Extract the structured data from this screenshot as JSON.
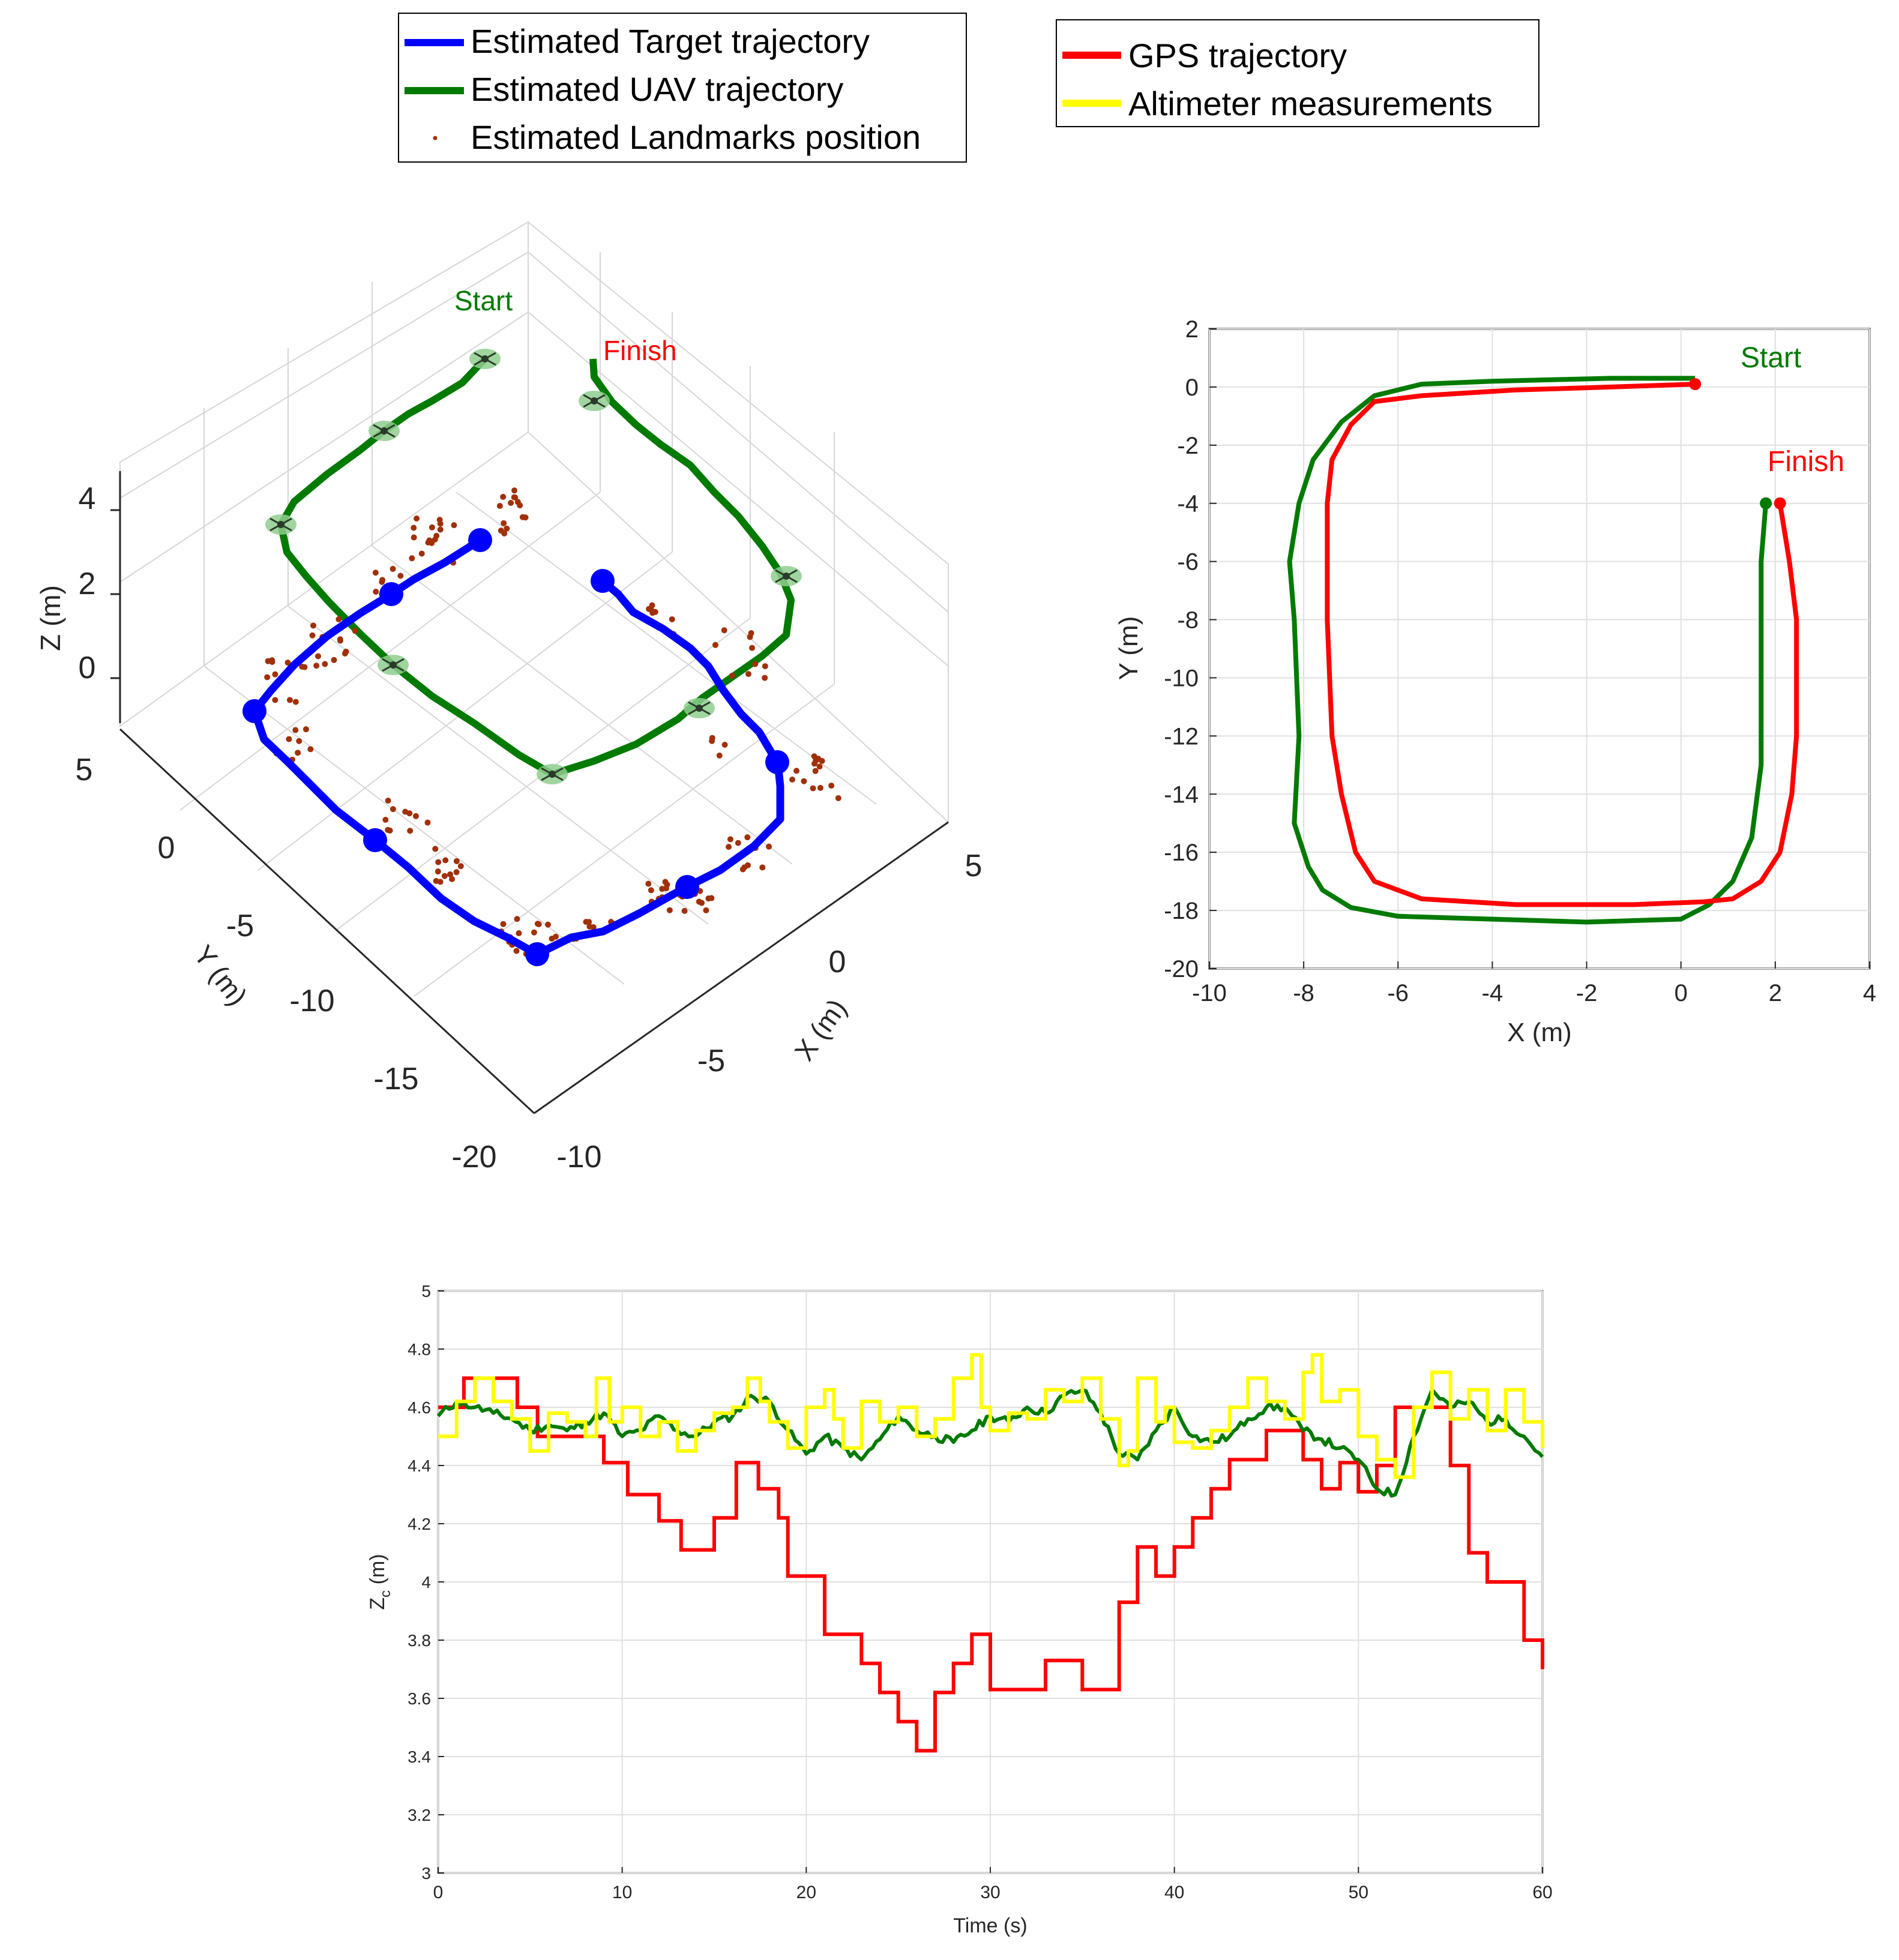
{
  "legend_left": {
    "items": [
      {
        "label": "Estimated Target trajectory",
        "color": "#0000ff",
        "style": "line"
      },
      {
        "label": "Estimated UAV trajectory",
        "color": "#007a00",
        "style": "line"
      },
      {
        "label": "Estimated Landmarks position",
        "color": "#a0300a",
        "style": "dot"
      }
    ]
  },
  "legend_right": {
    "items": [
      {
        "label": "GPS trajectory",
        "color": "#ff0000",
        "style": "line"
      },
      {
        "label": "Altimeter measurements",
        "color": "#ffff00",
        "style": "line"
      }
    ]
  },
  "colors": {
    "target": "#0000ff",
    "uav": "#007a00",
    "landmark": "#a0300a",
    "gps": "#ff0000",
    "altimeter": "#ffff00",
    "start_label": "#007a00",
    "finish_label": "#ff0000"
  },
  "chart_data": [
    {
      "type": "scatter",
      "id": "plot3d",
      "title": "",
      "annotations": {
        "start": "Start",
        "finish": "Finish"
      },
      "xlabel": "X (m)",
      "ylabel": "Y (m)",
      "zlabel": "Z (m)",
      "xticks": [
        "-10",
        "-5",
        "0",
        "5"
      ],
      "yticks": [
        "5",
        "0",
        "-5",
        "-10",
        "-15",
        "-20"
      ],
      "zticks": [
        "4",
        "2",
        "0"
      ],
      "xlim": [
        -10,
        5
      ],
      "ylim": [
        -20,
        5
      ],
      "zlim": [
        -1,
        4.5
      ],
      "target_trajectory": {
        "x": [
          0.3,
          -7.5,
          -7.5,
          2.1,
          1.8,
          0.3
        ],
        "y": [
          0,
          0,
          -17.8,
          -17.8,
          -4,
          0
        ],
        "z": [
          0,
          0,
          0,
          0,
          0,
          0
        ]
      },
      "uav_trajectory": {
        "x": [
          0.3,
          -8,
          -8,
          2.1,
          1.8
        ],
        "y": [
          0.2,
          0,
          -18.3,
          -18.3,
          -4
        ],
        "z": [
          4.5,
          4.5,
          4.5,
          4.5,
          4.5
        ]
      }
    },
    {
      "type": "line",
      "id": "plot2d",
      "title": "",
      "xlabel": "X (m)",
      "ylabel": "Y (m)",
      "xlim": [
        -10,
        4
      ],
      "ylim": [
        -20,
        2
      ],
      "xticks": [
        "-10",
        "-8",
        "-6",
        "-4",
        "-2",
        "0",
        "2",
        "4"
      ],
      "yticks": [
        "2",
        "0",
        "-2",
        "-4",
        "-6",
        "-8",
        "-10",
        "-12",
        "-14",
        "-16",
        "-18",
        "-20"
      ],
      "annotations": {
        "start": "Start",
        "finish": "Finish"
      },
      "series": [
        {
          "name": "Estimated UAV trajectory",
          "x": [
            0.3,
            -1.5,
            -4,
            -5.5,
            -6.5,
            -7.2,
            -7.8,
            -8.1,
            -8.3,
            -8.2,
            -8.1,
            -8.2,
            -7.9,
            -7.6,
            -7.0,
            -6.0,
            -4.0,
            -2.0,
            0.0,
            0.6,
            1.1,
            1.5,
            1.7,
            1.7,
            1.7,
            1.8
          ],
          "y": [
            0.3,
            0.3,
            0.2,
            0.1,
            -0.3,
            -1.2,
            -2.5,
            -4,
            -6,
            -8,
            -12,
            -15,
            -16.5,
            -17.3,
            -17.9,
            -18.2,
            -18.3,
            -18.4,
            -18.3,
            -17.8,
            -17,
            -15.5,
            -13,
            -10,
            -6,
            -4
          ]
        },
        {
          "name": "GPS trajectory",
          "x": [
            0.3,
            -1.5,
            -3.5,
            -5.5,
            -6.5,
            -7.0,
            -7.4,
            -7.5,
            -7.5,
            -7.4,
            -7.2,
            -6.9,
            -6.5,
            -5.5,
            -3.5,
            -1.0,
            0.5,
            1.1,
            1.7,
            2.1,
            2.35,
            2.45,
            2.45,
            2.3,
            2.1
          ],
          "y": [
            0.1,
            0,
            -0.1,
            -0.3,
            -0.5,
            -1.3,
            -2.5,
            -4,
            -8,
            -12,
            -14,
            -16,
            -17,
            -17.6,
            -17.8,
            -17.8,
            -17.7,
            -17.6,
            -17,
            -16,
            -14,
            -12,
            -8,
            -6,
            -4
          ]
        }
      ]
    },
    {
      "type": "line",
      "id": "plotz",
      "title": "",
      "xlabel": "Time (s)",
      "ylabel": "Z (m)",
      "ylabel_main": "Z",
      "ylabel_sub": "c",
      "ylabel_unit": " (m)",
      "xlim": [
        0,
        60
      ],
      "ylim": [
        3,
        5
      ],
      "xticks": [
        "0",
        "10",
        "20",
        "30",
        "40",
        "50",
        "60"
      ],
      "yticks": [
        "5",
        "4.8",
        "4.6",
        "4.4",
        "4.2",
        "4",
        "3.8",
        "3.6",
        "3.4",
        "3.2",
        "3"
      ],
      "series": [
        {
          "name": "GPS trajectory",
          "step": true,
          "t": [
            0,
            1.4,
            4.3,
            5.4,
            9,
            10.3,
            12,
            13.2,
            15,
            16.2,
            17.4,
            18.5,
            19,
            21,
            23,
            24,
            25,
            26,
            27,
            28,
            29,
            30,
            33,
            35,
            37,
            38,
            39,
            40,
            41,
            42,
            43,
            45,
            47,
            48,
            49,
            50,
            51,
            52,
            55,
            56,
            57,
            58,
            59,
            60
          ],
          "values": [
            4.6,
            4.7,
            4.6,
            4.5,
            4.41,
            4.3,
            4.21,
            4.11,
            4.22,
            4.41,
            4.32,
            4.22,
            4.02,
            3.82,
            3.72,
            3.62,
            3.52,
            3.42,
            3.62,
            3.72,
            3.82,
            3.63,
            3.73,
            3.63,
            3.93,
            4.12,
            4.02,
            4.12,
            4.22,
            4.32,
            4.42,
            4.52,
            4.42,
            4.32,
            4.41,
            4.31,
            4.4,
            4.6,
            4.4,
            4.1,
            4.0,
            4.0,
            3.8,
            3.7
          ]
        },
        {
          "name": "Estimated UAV trajectory",
          "t": [
            0,
            1,
            2,
            3,
            4,
            5,
            6,
            7,
            8,
            9,
            10,
            11,
            12,
            13,
            14,
            15,
            16,
            17,
            18,
            19,
            20,
            21,
            22,
            23,
            24,
            25,
            26,
            27,
            28,
            29,
            30,
            31,
            32,
            33,
            34,
            35,
            36,
            37,
            38,
            39,
            40,
            41,
            42,
            43,
            44,
            45,
            46,
            47,
            48,
            49,
            50,
            51,
            52,
            53,
            54,
            55,
            56,
            57,
            58,
            59,
            60
          ],
          "values": [
            4.57,
            4.62,
            4.6,
            4.58,
            4.56,
            4.52,
            4.54,
            4.52,
            4.55,
            4.58,
            4.5,
            4.52,
            4.57,
            4.52,
            4.5,
            4.55,
            4.57,
            4.64,
            4.62,
            4.52,
            4.44,
            4.5,
            4.46,
            4.42,
            4.49,
            4.57,
            4.52,
            4.5,
            4.48,
            4.52,
            4.57,
            4.55,
            4.6,
            4.58,
            4.64,
            4.66,
            4.58,
            4.44,
            4.42,
            4.52,
            4.6,
            4.5,
            4.48,
            4.5,
            4.56,
            4.6,
            4.6,
            4.52,
            4.49,
            4.46,
            4.42,
            4.32,
            4.3,
            4.5,
            4.66,
            4.6,
            4.62,
            4.55,
            4.56,
            4.5,
            4.43
          ]
        },
        {
          "name": "Altimeter measurements",
          "step": true,
          "t": [
            0,
            1,
            2,
            3,
            4,
            5,
            6,
            7,
            8,
            8.6,
            9.3,
            10,
            11,
            12,
            13,
            14,
            15,
            16,
            16.8,
            17.5,
            18,
            19,
            20,
            21,
            21.5,
            22,
            23,
            24,
            25,
            26,
            27,
            28,
            29,
            29.5,
            30,
            31,
            32,
            33,
            34,
            35,
            36,
            37,
            37.5,
            38,
            39,
            39.5,
            40,
            41,
            42,
            43,
            44,
            45,
            46,
            47,
            47.5,
            48,
            49,
            50,
            51,
            52,
            53,
            54,
            55,
            56,
            57,
            58,
            59,
            60
          ],
          "values": [
            4.5,
            4.62,
            4.7,
            4.62,
            4.56,
            4.45,
            4.58,
            4.55,
            4.5,
            4.7,
            4.55,
            4.6,
            4.5,
            4.55,
            4.45,
            4.52,
            4.58,
            4.6,
            4.7,
            4.62,
            4.55,
            4.46,
            4.6,
            4.66,
            4.56,
            4.46,
            4.62,
            4.55,
            4.6,
            4.5,
            4.56,
            4.7,
            4.78,
            4.6,
            4.52,
            4.58,
            4.56,
            4.66,
            4.62,
            4.7,
            4.56,
            4.4,
            4.45,
            4.7,
            4.55,
            4.6,
            4.48,
            4.46,
            4.52,
            4.6,
            4.7,
            4.62,
            4.56,
            4.72,
            4.78,
            4.62,
            4.66,
            4.5,
            4.42,
            4.36,
            4.6,
            4.72,
            4.56,
            4.66,
            4.52,
            4.66,
            4.55,
            4.46
          ]
        }
      ]
    }
  ]
}
